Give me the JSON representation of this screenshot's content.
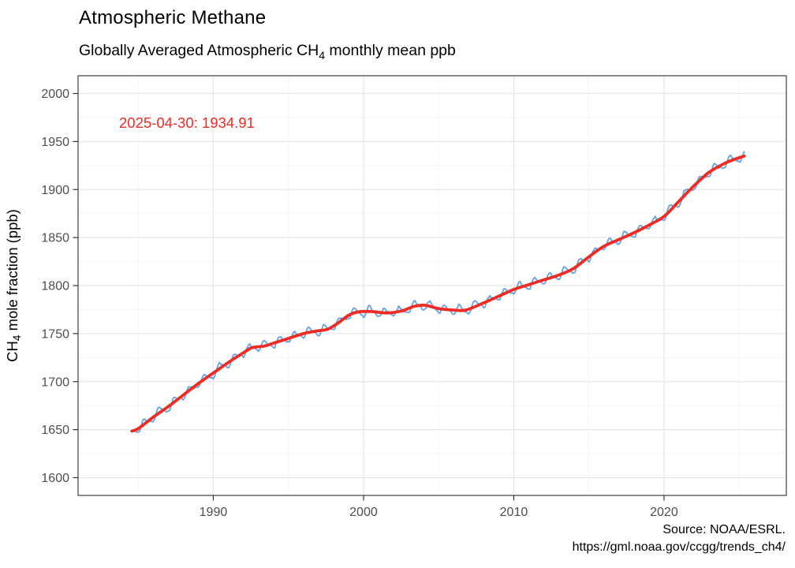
{
  "header": {
    "title": "Atmospheric Methane",
    "subtitle_part1": "Globally Averaged Atmospheric CH",
    "subtitle_sub": "4",
    "subtitle_part2": " monthly mean ppb"
  },
  "annotation": {
    "text": "2025-04-30: 1934.91",
    "color": "#EE2C24"
  },
  "axes": {
    "y_title_part1": "CH",
    "y_title_sub": "4",
    "y_title_part2": " mole fraction (ppb)",
    "tick_label_color": "#4D4D4D",
    "tick_mark_color": "#333333",
    "panel_border_color": "#4D4D4D",
    "grid_major_color": "#E7E7E7",
    "grid_minor_color": "#F3F3F3"
  },
  "caption": {
    "line1": "Source: NOAA/ESRL.",
    "line2": "https://gml.noaa.gov/ccgg/trends_ch4/"
  },
  "chart_data": {
    "type": "line",
    "title": "Atmospheric Methane",
    "subtitle": "Globally Averaged Atmospheric CH4 monthly mean ppb",
    "xlabel": "",
    "ylabel": "CH4 mole fraction (ppb)",
    "xlim": [
      1981.0,
      2028.14
    ],
    "ylim": [
      1581.5,
      2018.5
    ],
    "x_ticks": [
      1990,
      2000,
      2010,
      2020
    ],
    "y_ticks": [
      2000,
      1950,
      1900,
      1850,
      1800,
      1750,
      1700,
      1650,
      1600
    ],
    "x_minor_step": 5,
    "y_minor_step": 25,
    "grid": "major+minor",
    "legend": "none",
    "last_point": {
      "date": "2025-04-30",
      "value_ppb": 1934.91
    },
    "series": [
      {
        "name": "monthly mean",
        "color": "#64A2E2",
        "width": 1.8,
        "derive": {
          "from": "trend",
          "start": 1984.583,
          "end": 2025.333,
          "step_years": 0.08333,
          "seasonal_amplitude_ppb": 5.0,
          "noise_ppb": 1.0
        }
      },
      {
        "name": "trend (smoothed)",
        "color": "#EE2C24",
        "width": 3.8,
        "points": [
          [
            1984.58,
            1648.5
          ],
          [
            1985,
            1651
          ],
          [
            1986,
            1663
          ],
          [
            1987,
            1674
          ],
          [
            1988,
            1686
          ],
          [
            1989,
            1698
          ],
          [
            1990,
            1709
          ],
          [
            1991,
            1720
          ],
          [
            1992,
            1730
          ],
          [
            1992.6,
            1735.5
          ],
          [
            1993.4,
            1737
          ],
          [
            1994,
            1740
          ],
          [
            1995,
            1745
          ],
          [
            1996,
            1750
          ],
          [
            1997,
            1753
          ],
          [
            1997.6,
            1754.5
          ],
          [
            1998.3,
            1761
          ],
          [
            1999,
            1769
          ],
          [
            1999.6,
            1772.5
          ],
          [
            2000.5,
            1773
          ],
          [
            2001.5,
            1771.5
          ],
          [
            2002.5,
            1773.5
          ],
          [
            2003.4,
            1778.5
          ],
          [
            2004.1,
            1779.5
          ],
          [
            2005,
            1776
          ],
          [
            2006,
            1774.5
          ],
          [
            2006.8,
            1774.5
          ],
          [
            2008,
            1782
          ],
          [
            2009,
            1789
          ],
          [
            2010,
            1796
          ],
          [
            2011,
            1801
          ],
          [
            2012,
            1806
          ],
          [
            2013,
            1811
          ],
          [
            2014,
            1818
          ],
          [
            2015,
            1830
          ],
          [
            2016,
            1841
          ],
          [
            2017,
            1848
          ],
          [
            2018,
            1855
          ],
          [
            2019,
            1863
          ],
          [
            2020,
            1872
          ],
          [
            2021,
            1888
          ],
          [
            2022,
            1904
          ],
          [
            2023,
            1918
          ],
          [
            2024,
            1927
          ],
          [
            2024.7,
            1931.5
          ],
          [
            2025.33,
            1934.91
          ]
        ]
      }
    ]
  }
}
